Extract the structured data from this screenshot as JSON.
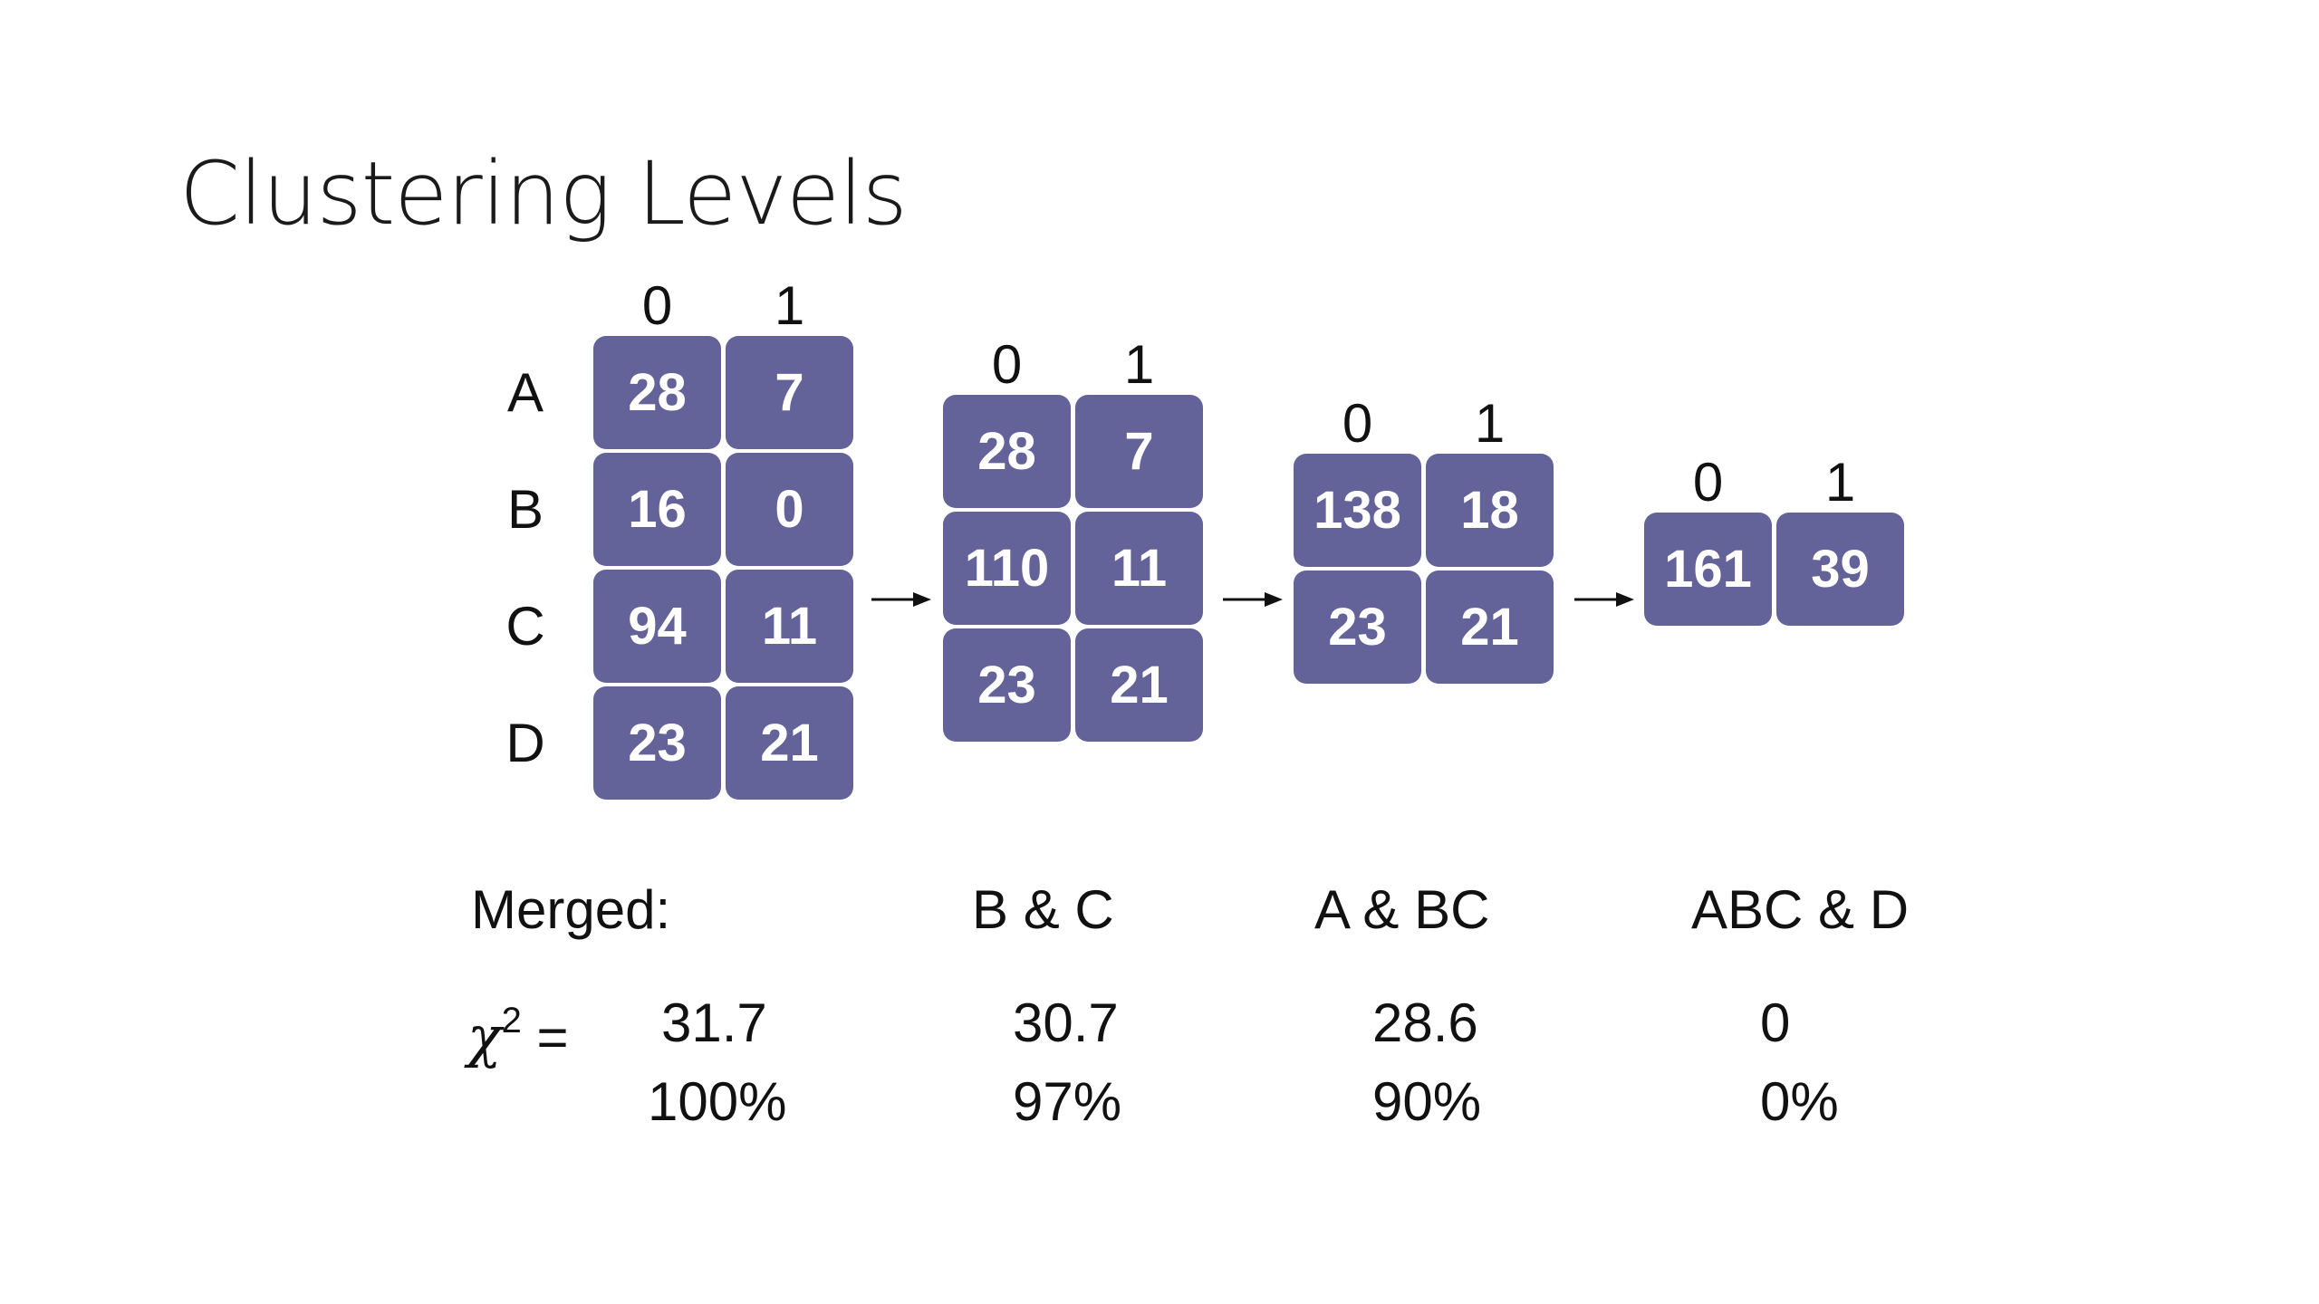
{
  "title": "Clustering Levels",
  "column_headers": [
    "0",
    "1"
  ],
  "row_labels": [
    "A",
    "B",
    "C",
    "D"
  ],
  "levels": [
    {
      "rows": [
        [
          "28",
          "7"
        ],
        [
          "16",
          "0"
        ],
        [
          "94",
          "11"
        ],
        [
          "23",
          "21"
        ]
      ],
      "merged": "Merged:",
      "chi2": "31.7",
      "pct": "100%"
    },
    {
      "rows": [
        [
          "28",
          "7"
        ],
        [
          "110",
          "11"
        ],
        [
          "23",
          "21"
        ]
      ],
      "merged": "B & C",
      "chi2": "30.7",
      "pct": "97%"
    },
    {
      "rows": [
        [
          "138",
          "18"
        ],
        [
          "23",
          "21"
        ]
      ],
      "merged": "A & BC",
      "chi2": "28.6",
      "pct": "90%"
    },
    {
      "rows": [
        [
          "161",
          "39"
        ]
      ],
      "merged": "ABC & D",
      "chi2": "0",
      "pct": "0%"
    }
  ],
  "chi_label": "χ",
  "chi_sup": "2",
  "chi_eq": " =",
  "colors": {
    "cell": "#63639a",
    "cell_text": "#ffffff"
  }
}
